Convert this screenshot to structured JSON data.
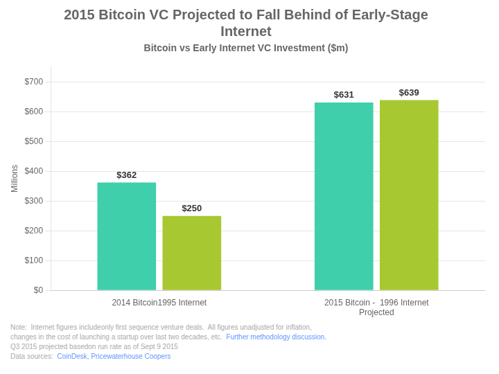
{
  "chart_data": {
    "type": "bar",
    "title": "2015 Bitcoin VC Projected to Fall Behind of Early-Stage\nInternet",
    "subtitle": "Bitcoin vs Early Internet VC Investment ($m)",
    "ylabel": "Millions",
    "categories": [
      "2014 Bitcoin1995 Internet",
      "2015 Bitcoin -  1996 Internet\nProjected"
    ],
    "series": [
      {
        "color": "#3fcfaa",
        "values": [
          362,
          631
        ],
        "value_labels": [
          "$362",
          "$631"
        ]
      },
      {
        "color": "#a8c832",
        "values": [
          250,
          639
        ],
        "value_labels": [
          "$250",
          "$639"
        ]
      }
    ],
    "data_labels": true,
    "ylim": [
      0,
      750
    ],
    "yticks": [
      {
        "value": 0,
        "label": "$0"
      },
      {
        "value": 100,
        "label": "$100"
      },
      {
        "value": 200,
        "label": "$200"
      },
      {
        "value": 300,
        "label": "$300"
      },
      {
        "value": 400,
        "label": "$400"
      },
      {
        "value": 500,
        "label": "$500"
      },
      {
        "value": 600,
        "label": "$600"
      },
      {
        "value": 700,
        "label": "$700"
      }
    ],
    "grid": true,
    "annotations": [
      [
        {
          "text": "Note:  Internet figures includeonly first sequence venture deals.  All figures unadjusted for inflation,",
          "color": "#aaaaaa"
        }
      ],
      [
        {
          "text": "changes in the cost of launching a startup over last two decades, etc.  ",
          "color": "#aaaaaa"
        },
        {
          "text": "Further methodology discussion.",
          "color": "#6699ff"
        }
      ],
      [
        {
          "text": "Q3 2015 projected basedon run rate as of Sept 9 2015",
          "color": "#aaaaaa"
        }
      ],
      [
        {
          "text": "Data sources:  ",
          "color": "#aaaaaa"
        },
        {
          "text": "CoinDesk, Pricewaterhouse Coopers",
          "color": "#6699ff"
        }
      ]
    ]
  }
}
